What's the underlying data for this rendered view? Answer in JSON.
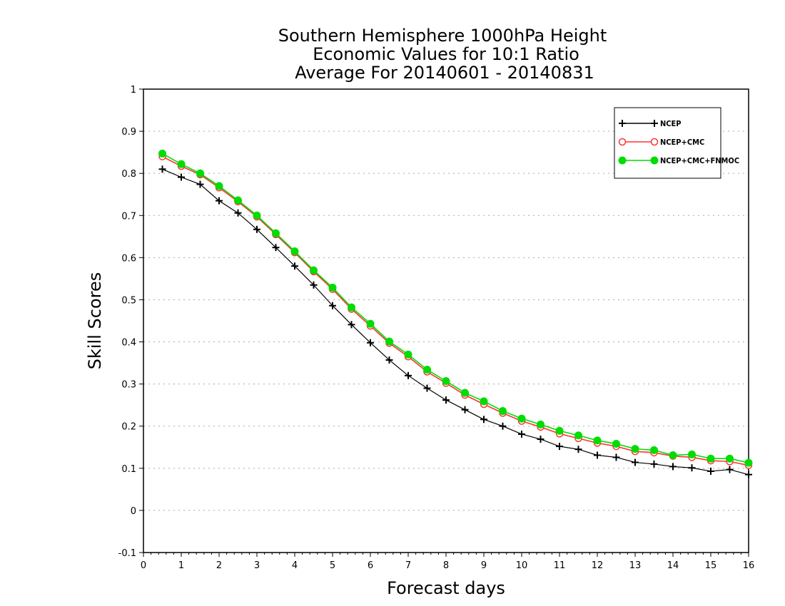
{
  "chart_data": {
    "type": "line",
    "title": [
      "Southern Hemisphere 1000hPa Height",
      "Economic Values for 10:1 Ratio",
      "Average For 20140601 - 20140831"
    ],
    "xlabel": "Forecast days",
    "ylabel": "Skill Scores",
    "xlim": [
      0,
      16
    ],
    "ylim": [
      -0.1,
      1
    ],
    "xticks": [
      0,
      1,
      2,
      3,
      4,
      5,
      6,
      7,
      8,
      9,
      10,
      11,
      12,
      13,
      14,
      15,
      16
    ],
    "xtick_labels": [
      "0",
      "1",
      "2",
      "3",
      "4",
      "5",
      "6",
      "7",
      "8",
      "9",
      "10",
      "11",
      "12",
      "13",
      "14",
      "15",
      "16"
    ],
    "yticks": [
      -0.1,
      0,
      0.1,
      0.2,
      0.3,
      0.4,
      0.5,
      0.6,
      0.7,
      0.8,
      0.9,
      1
    ],
    "ytick_labels": [
      "-0.1",
      "0",
      "0.1",
      "0.2",
      "0.3",
      "0.4",
      "0.5",
      "0.6",
      "0.7",
      "0.8",
      "0.9",
      "1"
    ],
    "grid": true,
    "legend_position": "top-right",
    "x": [
      0.5,
      1,
      1.5,
      2,
      2.5,
      3,
      3.5,
      4,
      4.5,
      5,
      5.5,
      6,
      6.5,
      7,
      7.5,
      8,
      8.5,
      9,
      9.5,
      10,
      10.5,
      11,
      11.5,
      12,
      12.5,
      13,
      13.5,
      14,
      14.5,
      15,
      15.5,
      16
    ],
    "series": [
      {
        "name": "NCEP",
        "color": "#000000",
        "marker": "plus",
        "values": [
          0.81,
          0.791,
          0.774,
          0.735,
          0.706,
          0.667,
          0.624,
          0.58,
          0.535,
          0.486,
          0.441,
          0.398,
          0.357,
          0.32,
          0.29,
          0.262,
          0.239,
          0.216,
          0.2,
          0.181,
          0.169,
          0.152,
          0.145,
          0.131,
          0.126,
          0.114,
          0.11,
          0.104,
          0.101,
          0.093,
          0.097,
          0.085
        ]
      },
      {
        "name": "NCEP+CMC",
        "color": "#ff3333",
        "marker": "open-circle",
        "values": [
          0.84,
          0.817,
          0.797,
          0.766,
          0.733,
          0.697,
          0.655,
          0.612,
          0.567,
          0.525,
          0.478,
          0.438,
          0.397,
          0.365,
          0.329,
          0.302,
          0.274,
          0.252,
          0.231,
          0.212,
          0.198,
          0.182,
          0.171,
          0.16,
          0.152,
          0.14,
          0.137,
          0.129,
          0.126,
          0.118,
          0.116,
          0.107
        ]
      },
      {
        "name": "NCEP+CMC+FNMOC",
        "color": "#00dd00",
        "marker": "filled-circle",
        "values": [
          0.847,
          0.822,
          0.8,
          0.77,
          0.736,
          0.7,
          0.658,
          0.615,
          0.57,
          0.529,
          0.482,
          0.443,
          0.401,
          0.37,
          0.334,
          0.307,
          0.279,
          0.259,
          0.236,
          0.218,
          0.204,
          0.189,
          0.178,
          0.166,
          0.158,
          0.146,
          0.143,
          0.131,
          0.133,
          0.123,
          0.123,
          0.113
        ]
      }
    ]
  }
}
